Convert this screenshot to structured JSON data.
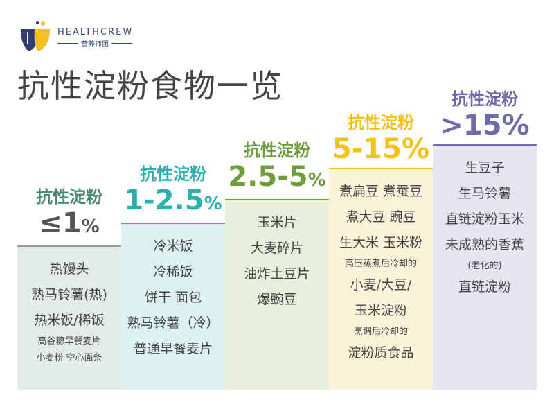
{
  "logo": {
    "brand": "HEALTHCREW",
    "sub": "营养师团"
  },
  "title": "抗性淀粉食物一览",
  "columns": [
    {
      "label": "抗性淀粉",
      "range": "≤1",
      "unit": "%",
      "color": "#4b8b76",
      "range_color": "#555555",
      "bg": "#e4ece7",
      "items": [
        {
          "text": "热馒头"
        },
        {
          "text": "熟马铃薯(热)"
        },
        {
          "text": "热米饭/稀饭"
        },
        {
          "text": "高谷糠早餐麦片",
          "size": "small"
        },
        {
          "text": "小麦粉 空心面条",
          "size": "small"
        }
      ]
    },
    {
      "label": "抗性淀粉",
      "range": "1-2.5",
      "unit": "%",
      "color": "#2fb0ae",
      "range_color": "#2fb0ae",
      "bg": "#ddf1ef",
      "items": [
        {
          "text": "冷米饭"
        },
        {
          "text": "冷稀饭"
        },
        {
          "text": "饼干 面包"
        },
        {
          "text": "熟马铃薯（冷）"
        },
        {
          "text": "普通早餐麦片"
        }
      ]
    },
    {
      "label": "抗性淀粉",
      "range": "2.5-5",
      "unit": "%",
      "color": "#6f9b3e",
      "range_color": "#6f9b3e",
      "bg": "#e8efdd",
      "items": [
        {
          "text": "玉米片"
        },
        {
          "text": "大麦碎片"
        },
        {
          "text": "油炸土豆片"
        },
        {
          "text": "爆豌豆"
        }
      ]
    },
    {
      "label": "抗性淀粉",
      "range": "5-15",
      "unit": "%",
      "color": "#f2c21c",
      "range_color": "#f2c21c",
      "bg": "#fbf3d9",
      "items": [
        {
          "text": "煮扁豆 煮蚕豆"
        },
        {
          "text": "煮大豆 豌豆"
        },
        {
          "text": "生大米 玉米粉"
        },
        {
          "text": "高压蒸煮后冷却的",
          "size": "small"
        },
        {
          "text": "小麦/大豆/"
        },
        {
          "text": "玉米淀粉"
        },
        {
          "text": "烹调后冷却的",
          "size": "small"
        },
        {
          "text": "淀粉质食品"
        }
      ]
    },
    {
      "label": "抗性淀粉",
      "range": ">15",
      "unit": "%",
      "color": "#6d6ca8",
      "range_color": "#6d6ca8",
      "bg": "#e5e5f1",
      "items": [
        {
          "text": "生豆子"
        },
        {
          "text": "生马铃薯"
        },
        {
          "text": "直链淀粉玉米"
        },
        {
          "text": "未成熟的香蕉"
        },
        {
          "text": "(老化的)",
          "size": "small"
        },
        {
          "text": "直链淀粉"
        }
      ]
    }
  ]
}
